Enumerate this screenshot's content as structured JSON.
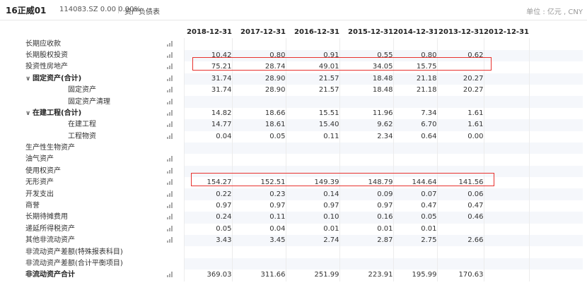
{
  "header": {
    "name": "16正威01",
    "meta": "114083.SZ  0.00  0.00%",
    "section": "资产负债表",
    "unit": "单位 : 亿元 , CNY"
  },
  "table": {
    "years": [
      "2018-12-31",
      "2017-12-31",
      "2016-12-31",
      "2015-12-31",
      "2014-12-31",
      "2013-12-31",
      "2012-12-31"
    ],
    "rows": [
      {
        "name": "长期应收款",
        "chart": true,
        "values": [
          "",
          "",
          "",
          "",
          "",
          "",
          ""
        ]
      },
      {
        "name": "长期股权投资",
        "chart": true,
        "values": [
          "10.42",
          "0.80",
          "0.91",
          "0.55",
          "0.80",
          "0.62",
          ""
        ]
      },
      {
        "name": "投资性房地产",
        "chart": true,
        "values": [
          "75.21",
          "28.74",
          "49.01",
          "34.05",
          "15.75",
          "",
          ""
        ]
      },
      {
        "name": "固定资产(合计)",
        "chart": true,
        "values": [
          "31.74",
          "28.90",
          "21.57",
          "18.48",
          "21.18",
          "20.27",
          ""
        ]
      },
      {
        "name": "固定资产",
        "chart": true,
        "values": [
          "31.74",
          "28.90",
          "21.57",
          "18.48",
          "21.18",
          "20.27",
          ""
        ]
      },
      {
        "name": "固定资产清理",
        "chart": true,
        "values": [
          "",
          "",
          "",
          "",
          "",
          "",
          ""
        ]
      },
      {
        "name": "在建工程(合计)",
        "chart": true,
        "values": [
          "14.82",
          "18.66",
          "15.51",
          "11.96",
          "7.34",
          "1.61",
          ""
        ]
      },
      {
        "name": "在建工程",
        "chart": true,
        "values": [
          "14.77",
          "18.61",
          "15.40",
          "9.62",
          "6.70",
          "1.61",
          ""
        ]
      },
      {
        "name": "工程物资",
        "chart": true,
        "values": [
          "0.04",
          "0.05",
          "0.11",
          "2.34",
          "0.64",
          "0.00",
          ""
        ]
      },
      {
        "name": "生产性生物资产",
        "chart": false,
        "values": [
          "",
          "",
          "",
          "",
          "",
          "",
          ""
        ]
      },
      {
        "name": "油气资产",
        "chart": true,
        "values": [
          "",
          "",
          "",
          "",
          "",
          "",
          ""
        ]
      },
      {
        "name": "使用权资产",
        "chart": true,
        "values": [
          "",
          "",
          "",
          "",
          "",
          "",
          ""
        ]
      },
      {
        "name": "无形资产",
        "chart": true,
        "values": [
          "154.27",
          "152.51",
          "149.39",
          "148.79",
          "144.64",
          "141.56",
          ""
        ]
      },
      {
        "name": "开发支出",
        "chart": true,
        "values": [
          "0.22",
          "0.23",
          "0.14",
          "0.09",
          "0.07",
          "0.06",
          ""
        ]
      },
      {
        "name": "商誉",
        "chart": true,
        "values": [
          "0.97",
          "0.97",
          "0.97",
          "0.97",
          "0.47",
          "0.47",
          ""
        ]
      },
      {
        "name": "长期待摊费用",
        "chart": true,
        "values": [
          "0.24",
          "0.11",
          "0.10",
          "0.16",
          "0.05",
          "0.46",
          ""
        ]
      },
      {
        "name": "递延所得税资产",
        "chart": true,
        "values": [
          "0.05",
          "0.04",
          "0.01",
          "0.01",
          "0.01",
          "",
          ""
        ]
      },
      {
        "name": "其他非流动资产",
        "chart": true,
        "values": [
          "3.43",
          "3.45",
          "2.74",
          "2.87",
          "2.75",
          "2.66",
          ""
        ]
      },
      {
        "name": "非流动资产差额(特殊报表科目)",
        "chart": false,
        "values": [
          "",
          "",
          "",
          "",
          "",
          "",
          ""
        ]
      },
      {
        "name": "非流动资产差额(合计平衡项目)",
        "chart": false,
        "values": [
          "",
          "",
          "",
          "",
          "",
          "",
          ""
        ]
      },
      {
        "name": "非流动资产合计",
        "chart": true,
        "values": [
          "369.03",
          "311.66",
          "251.99",
          "223.91",
          "195.99",
          "170.63",
          ""
        ]
      }
    ]
  },
  "highlight_color": "#e8322e"
}
